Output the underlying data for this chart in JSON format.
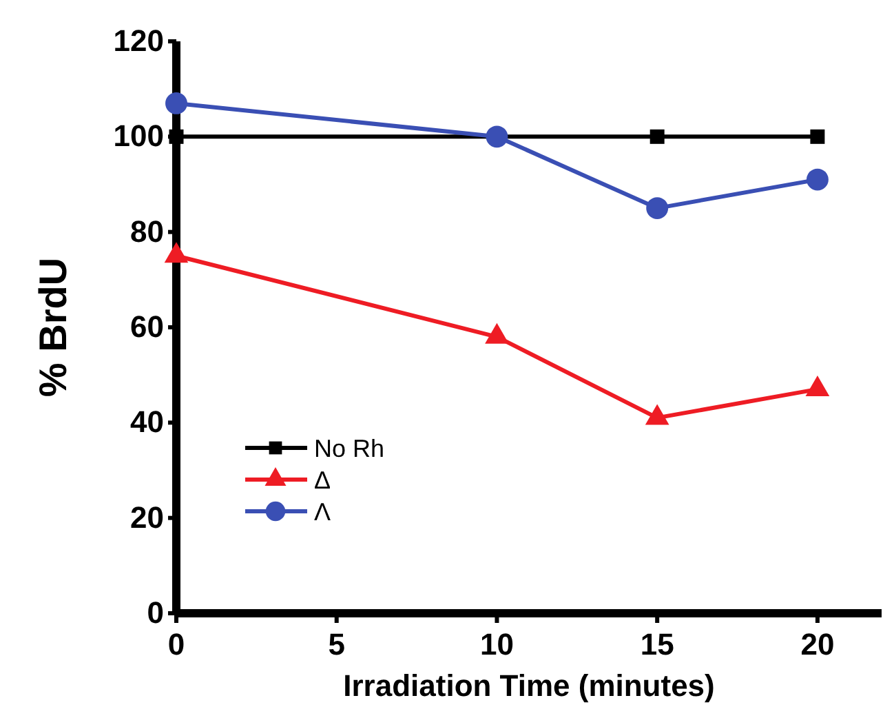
{
  "chart_data": {
    "type": "line",
    "xlabel": "Irradiation Time (minutes)",
    "ylabel": "% BrdU",
    "x": [
      0,
      10,
      15,
      20
    ],
    "xlim": [
      0,
      22
    ],
    "xticks": [
      0,
      5,
      10,
      15,
      20
    ],
    "ylim": [
      0,
      120
    ],
    "yticks": [
      0,
      20,
      40,
      60,
      80,
      100,
      120
    ],
    "grid": false,
    "legend": "bottom left",
    "series": [
      {
        "name": "No Rh",
        "color": "#000000",
        "marker": "square",
        "values": [
          100,
          100,
          100,
          100
        ]
      },
      {
        "name": "Δ",
        "color": "#ee1c24",
        "marker": "triangle",
        "values": [
          75,
          58,
          41,
          47
        ]
      },
      {
        "name": "Λ",
        "color": "#3a4fb4",
        "marker": "circle",
        "values": [
          107,
          100,
          85,
          91
        ]
      }
    ]
  }
}
